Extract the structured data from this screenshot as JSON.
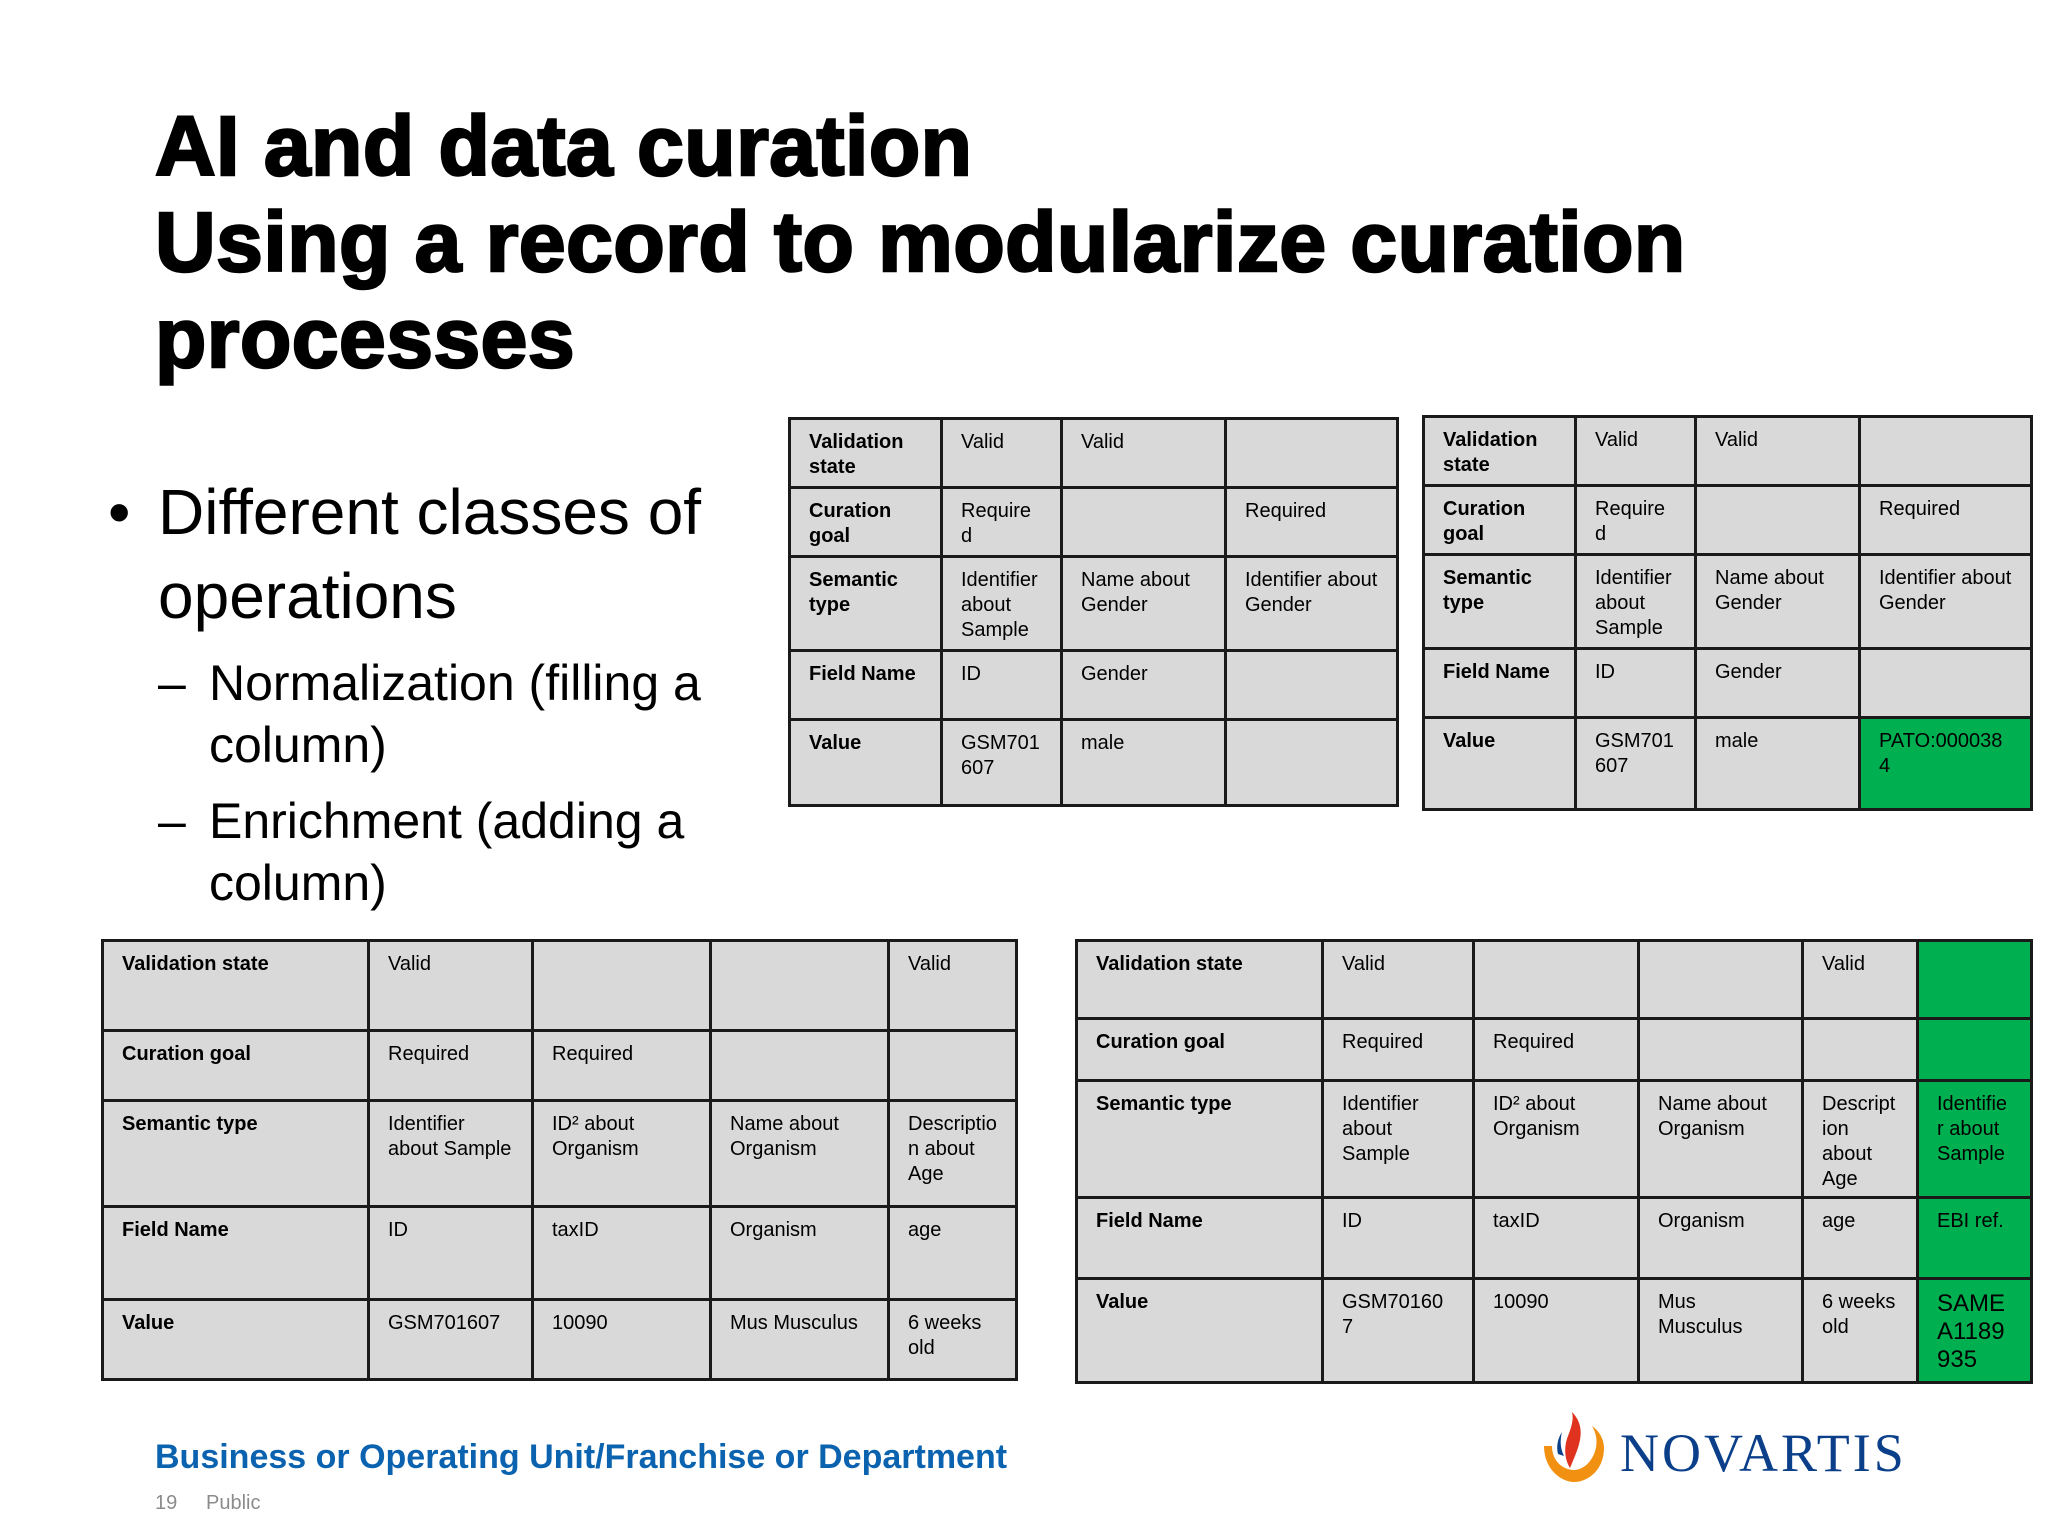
{
  "slide": {
    "title_line1": "AI and data curation",
    "title_line2": "Using a record to modularize curation",
    "title_line3": "processes",
    "bullet_main": "Different classes of operations",
    "bullet_sub1": "Normalization (filling a column)",
    "bullet_sub2": "Enrichment (adding a column)"
  },
  "table_top_left": {
    "rows": [
      [
        "Validation state",
        "Valid",
        "Valid",
        ""
      ],
      [
        "Curation goal",
        "Required",
        "",
        "Required"
      ],
      [
        "Semantic type",
        "Identifier about Sample",
        "Name about Gender",
        "Identifier about Gender"
      ],
      [
        "Field Name",
        "ID",
        "Gender",
        ""
      ],
      [
        "Value",
        "GSM701607",
        "male",
        ""
      ]
    ]
  },
  "table_top_right": {
    "rows": [
      [
        "Validation state",
        "Valid",
        "Valid",
        ""
      ],
      [
        "Curation goal",
        "Required",
        "",
        "Required"
      ],
      [
        "Semantic type",
        "Identifier about Sample",
        "Name about Gender",
        "Identifier about Gender"
      ],
      [
        "Field Name",
        "ID",
        "Gender",
        ""
      ],
      [
        "Value",
        "GSM701607",
        "male",
        "PATO:0000384"
      ]
    ],
    "highlight_color": "#00b050"
  },
  "table_bottom_left": {
    "rows": [
      [
        "Validation state",
        "Valid",
        "",
        "",
        "Valid"
      ],
      [
        "Curation goal",
        "Required",
        "Required",
        "",
        ""
      ],
      [
        "Semantic type",
        "Identifier about Sample",
        "ID² about Organism",
        "Name about Organism",
        "Description about Age"
      ],
      [
        "Field Name",
        "ID",
        "taxID",
        "Organism",
        "age"
      ],
      [
        "Value",
        "GSM701607",
        "10090",
        "Mus Musculus",
        "6 weeks old"
      ]
    ]
  },
  "table_bottom_right": {
    "rows": [
      [
        "Validation state",
        "Valid",
        "",
        "",
        "Valid",
        ""
      ],
      [
        "Curation goal",
        "Required",
        "Required",
        "",
        "",
        ""
      ],
      [
        "Semantic type",
        "Identifier about Sample",
        "ID² about Organism",
        "Name about Organism",
        "Description about Age",
        "Identifier about Sample"
      ],
      [
        "Field Name",
        "ID",
        "taxID",
        "Organism",
        "age",
        "EBI ref."
      ],
      [
        "Value",
        "GSM701607",
        "10090",
        "Mus Musculus",
        "6 weeks old",
        "SAMEA1189935"
      ]
    ],
    "highlight_color": "#00b050"
  },
  "footer": {
    "unit": "Business or Operating Unit/Franchise or Department",
    "page_number": "19",
    "classification": "Public",
    "logo_text": "NOVARTIS",
    "logo_colors": {
      "primary": "#0b3f8a",
      "flame_orange": "#f29111",
      "flame_red": "#e0331f"
    }
  }
}
